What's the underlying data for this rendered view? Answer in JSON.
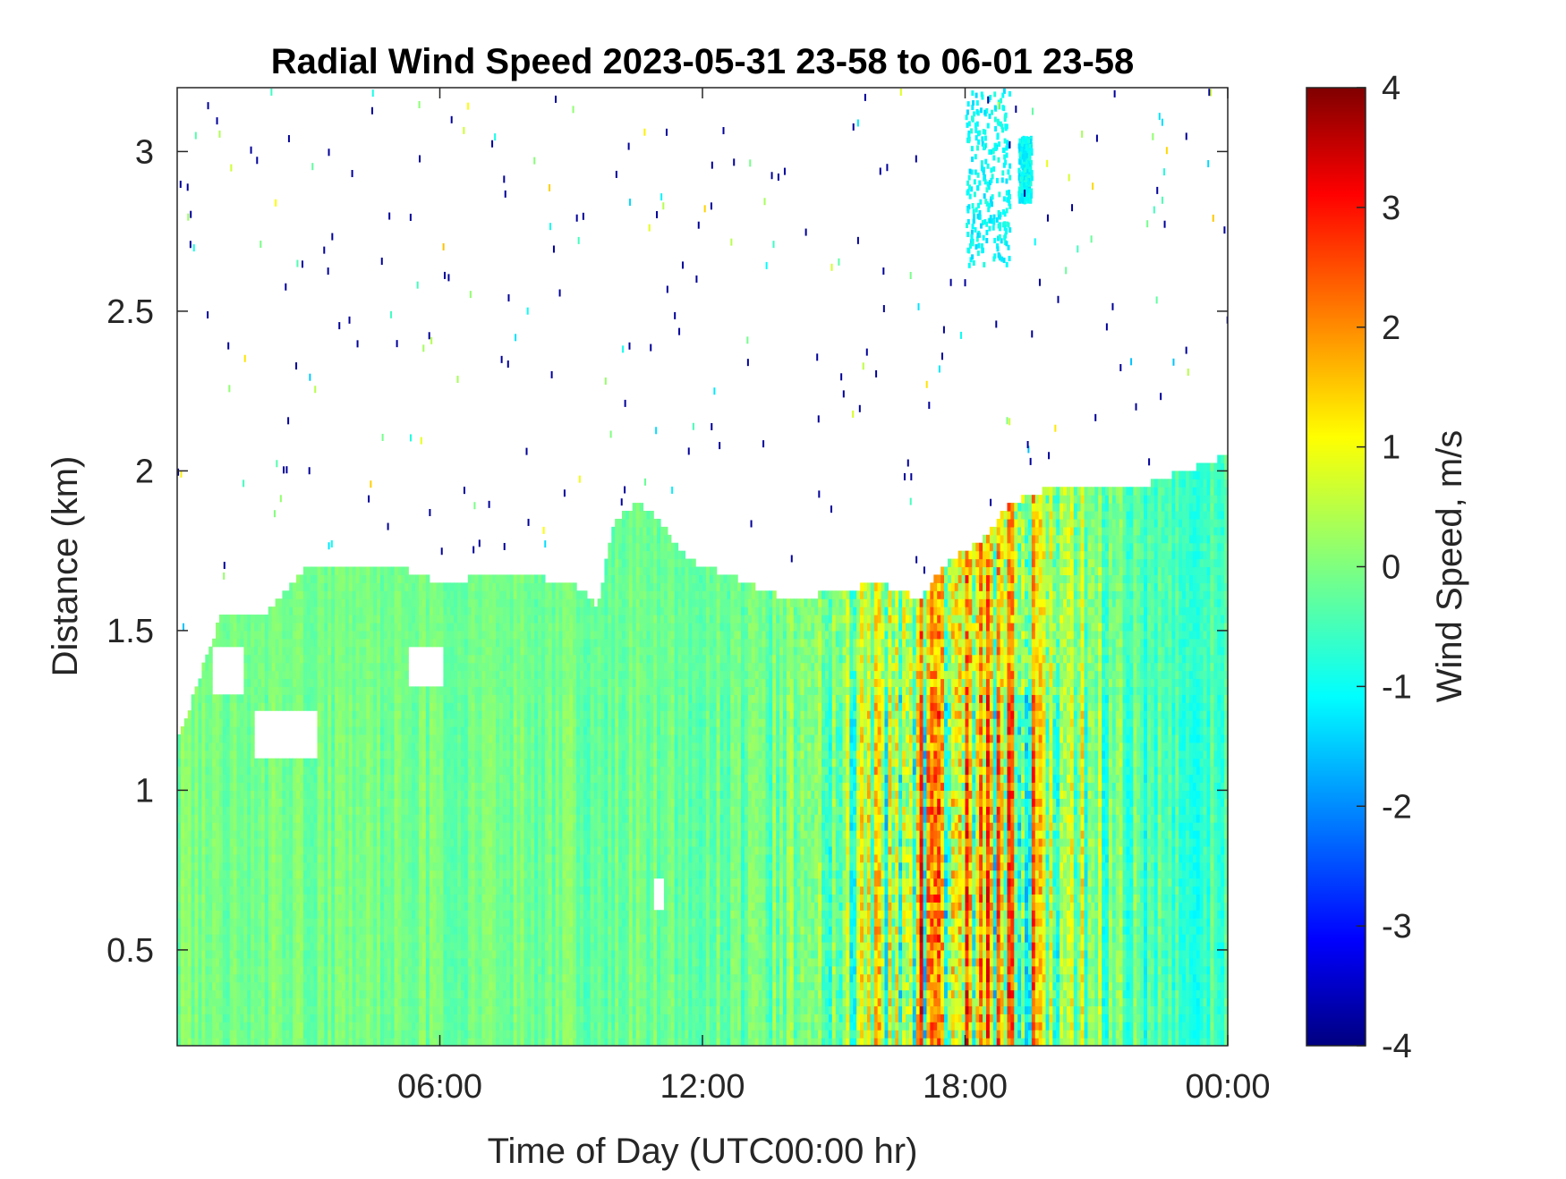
{
  "chart_data": {
    "type": "heatmap",
    "title": "Radial Wind Speed 2023-05-31 23-58 to 06-01 23-58",
    "xlabel": "Time of Day (UTC00:00 hr)",
    "ylabel": "Distance (km)",
    "colorbar_label": "Wind Speed, m/s",
    "xlim_hours": [
      0,
      24
    ],
    "ylim": [
      0.2,
      3.2
    ],
    "clim": [
      -4,
      4
    ],
    "colormap": "jet",
    "grid": false,
    "x_ticks": [
      {
        "hour": 6,
        "label": "06:00"
      },
      {
        "hour": 12,
        "label": "12:00"
      },
      {
        "hour": 18,
        "label": "18:00"
      },
      {
        "hour": 24,
        "label": "00:00"
      }
    ],
    "y_ticks": [
      {
        "value": 0.5,
        "label": "0.5"
      },
      {
        "value": 1,
        "label": "1"
      },
      {
        "value": 1.5,
        "label": "1.5"
      },
      {
        "value": 2,
        "label": "2"
      },
      {
        "value": 2.5,
        "label": "2.5"
      },
      {
        "value": 3,
        "label": "3"
      }
    ],
    "colorbar_ticks": [
      {
        "value": -4,
        "label": "-4"
      },
      {
        "value": -3,
        "label": "-3"
      },
      {
        "value": -2,
        "label": "-2"
      },
      {
        "value": -1,
        "label": "-1"
      },
      {
        "value": 0,
        "label": "0"
      },
      {
        "value": 1,
        "label": "1"
      },
      {
        "value": 2,
        "label": "2"
      },
      {
        "value": 3,
        "label": "3"
      },
      {
        "value": 4,
        "label": "4"
      }
    ],
    "data_top_km": [
      [
        0,
        1.15
      ],
      [
        1,
        1.55
      ],
      [
        2,
        1.55
      ],
      [
        3,
        1.7
      ],
      [
        4,
        1.7
      ],
      [
        5,
        1.7
      ],
      [
        6,
        1.65
      ],
      [
        7,
        1.67
      ],
      [
        8,
        1.67
      ],
      [
        9,
        1.65
      ],
      [
        9.6,
        1.58
      ],
      [
        10,
        1.85
      ],
      [
        10.5,
        1.9
      ],
      [
        11,
        1.85
      ],
      [
        11.5,
        1.75
      ],
      [
        12,
        1.7
      ],
      [
        12.5,
        1.68
      ],
      [
        13,
        1.65
      ],
      [
        13.5,
        1.62
      ],
      [
        14,
        1.6
      ],
      [
        15,
        1.62
      ],
      [
        16,
        1.65
      ],
      [
        17,
        1.6
      ],
      [
        17.5,
        1.7
      ],
      [
        18,
        1.75
      ],
      [
        18.5,
        1.8
      ],
      [
        19,
        1.9
      ],
      [
        20,
        1.95
      ],
      [
        21,
        1.95
      ],
      [
        22,
        1.95
      ],
      [
        23,
        2.0
      ],
      [
        24,
        2.05
      ]
    ],
    "mean_wind_profile": [
      [
        0,
        -0.05
      ],
      [
        6,
        -0.1
      ],
      [
        12,
        -0.15
      ],
      [
        13.5,
        -0.1
      ],
      [
        14.5,
        0.05
      ],
      [
        15.5,
        0.3
      ],
      [
        16.5,
        0.6
      ],
      [
        17.5,
        1.0
      ],
      [
        18,
        1.2
      ],
      [
        19,
        0.9
      ],
      [
        20,
        0.6
      ],
      [
        21,
        0.0
      ],
      [
        22,
        -0.4
      ],
      [
        24,
        -0.4
      ]
    ],
    "wind_variability": [
      [
        0,
        0.3
      ],
      [
        6,
        0.3
      ],
      [
        12,
        0.35
      ],
      [
        14,
        0.6
      ],
      [
        15,
        1.0
      ],
      [
        16,
        1.6
      ],
      [
        17,
        2.3
      ],
      [
        18,
        2.5
      ],
      [
        19,
        2.0
      ],
      [
        20,
        1.6
      ],
      [
        21,
        0.9
      ],
      [
        22,
        0.6
      ],
      [
        24,
        0.5
      ]
    ],
    "no_data_regions_km": [
      {
        "hours": [
          0.8,
          1.5
        ],
        "km": [
          1.3,
          1.45
        ]
      },
      {
        "hours": [
          1.8,
          3.2
        ],
        "km": [
          1.1,
          1.25
        ]
      },
      {
        "hours": [
          5.3,
          6.1
        ],
        "km": [
          1.33,
          1.45
        ]
      },
      {
        "hours": [
          10.9,
          11.1
        ],
        "km": [
          0.63,
          0.72
        ]
      }
    ],
    "upper_echo_patches_km": [
      {
        "hours": [
          18.0,
          19.0
        ],
        "km": [
          2.65,
          3.2
        ]
      },
      {
        "hours": [
          19.2,
          19.5
        ],
        "km": [
          2.85,
          3.05
        ]
      }
    ]
  }
}
